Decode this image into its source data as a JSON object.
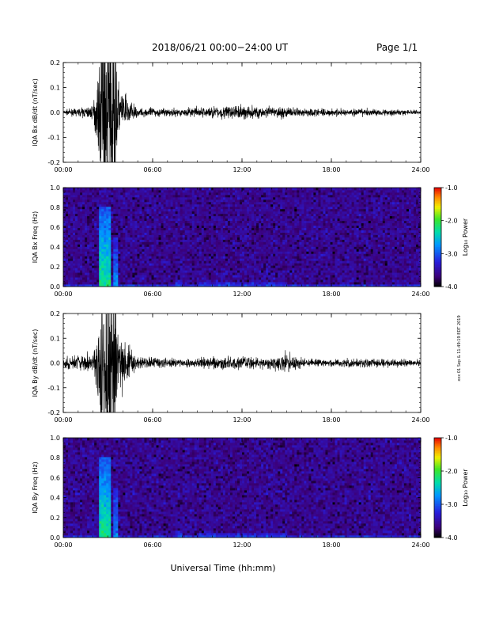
{
  "header": {
    "title": "2018/06/21  00:00−24:00 UT",
    "page": "Page 1/1"
  },
  "side_stamp": "xxx 01 Sep & 11:49:19 EDT 2019",
  "colors": {
    "trace": "#000000",
    "background": "#ffffff"
  },
  "chart_data": [
    {
      "type": "line",
      "ylabel": "IQA Bx dB/dt (nT/sec)",
      "ylim": [
        -0.2,
        0.2
      ],
      "yticks": [
        "-0.2",
        "-0.1",
        "0.0",
        "0.1",
        "0.2"
      ],
      "xlim": [
        0,
        24
      ],
      "xticks": [
        "00:00",
        "06:00",
        "12:00",
        "18:00",
        "24:00"
      ],
      "series": [
        {
          "x": [
            0,
            1,
            2,
            2.5,
            3,
            3.5,
            4,
            5,
            6,
            8,
            10,
            12,
            14,
            15,
            16,
            18,
            20,
            22,
            24
          ],
          "y_amplitude": [
            0.01,
            0.015,
            0.03,
            0.2,
            0.2,
            0.2,
            0.08,
            0.015,
            0.02,
            0.015,
            0.025,
            0.03,
            0.025,
            0.02,
            0.02,
            0.015,
            0.015,
            0.012,
            0.01
          ]
        }
      ]
    },
    {
      "type": "heatmap",
      "ylabel": "IQA Bx Freq (Hz)",
      "ylim": [
        0,
        1.0
      ],
      "yticks": [
        "0.0",
        "0.2",
        "0.4",
        "0.6",
        "0.8",
        "1.0"
      ],
      "xlim": [
        0,
        24
      ],
      "xticks": [
        "00:00",
        "06:00",
        "12:00",
        "18:00",
        "24:00"
      ],
      "colorbar": {
        "label": "Log₁₀ Power",
        "range": [
          -4.0,
          -1.0
        ],
        "ticks": [
          "-1.0",
          "-2.0",
          "-3.0",
          "-4.0"
        ]
      },
      "background_level": -3.6,
      "enhancements": [
        {
          "t_start": 2.4,
          "t_end": 3.2,
          "f_max": 0.8,
          "level": -2.2
        },
        {
          "t_start": 3.4,
          "t_end": 3.6,
          "f_max": 0.5,
          "level": -2.8
        },
        {
          "t_start": 7.5,
          "t_end": 8.0,
          "f_max": 0.07,
          "level": -3.0
        },
        {
          "t_start": 9.0,
          "t_end": 15.0,
          "f_max": 0.05,
          "level": -3.1
        }
      ]
    },
    {
      "type": "line",
      "ylabel": "IQA By dB/dt (nT/sec)",
      "ylim": [
        -0.2,
        0.2
      ],
      "yticks": [
        "-0.2",
        "-0.1",
        "0.0",
        "0.1",
        "0.2"
      ],
      "xlim": [
        0,
        24
      ],
      "xticks": [
        "00:00",
        "06:00",
        "12:00",
        "18:00",
        "24:00"
      ],
      "series": [
        {
          "x": [
            0,
            1,
            2,
            2.5,
            3,
            3.5,
            4,
            5,
            6,
            8,
            10,
            12,
            14,
            15,
            16,
            18,
            20,
            22,
            24
          ],
          "y_amplitude": [
            0.025,
            0.03,
            0.05,
            0.2,
            0.2,
            0.2,
            0.1,
            0.025,
            0.025,
            0.015,
            0.025,
            0.03,
            0.025,
            0.045,
            0.02,
            0.015,
            0.02,
            0.015,
            0.015
          ]
        }
      ]
    },
    {
      "type": "heatmap",
      "ylabel": "IQA By Freq (Hz)",
      "ylim": [
        0,
        1.0
      ],
      "yticks": [
        "0.0",
        "0.2",
        "0.4",
        "0.6",
        "0.8",
        "1.0"
      ],
      "xlim": [
        0,
        24
      ],
      "xticks": [
        "00:00",
        "06:00",
        "12:00",
        "18:00",
        "24:00"
      ],
      "colorbar": {
        "label": "Log₁₀ Power",
        "range": [
          -4.0,
          -1.0
        ],
        "ticks": [
          "-1.0",
          "-2.0",
          "-3.0",
          "-4.0"
        ]
      },
      "background_level": -3.6,
      "enhancements": [
        {
          "t_start": 2.4,
          "t_end": 3.2,
          "f_max": 0.8,
          "level": -2.2
        },
        {
          "t_start": 3.4,
          "t_end": 3.6,
          "f_max": 0.5,
          "level": -2.8
        },
        {
          "t_start": 7.5,
          "t_end": 8.0,
          "f_max": 0.07,
          "level": -3.0
        },
        {
          "t_start": 9.0,
          "t_end": 15.0,
          "f_max": 0.05,
          "level": -3.1
        }
      ]
    }
  ],
  "xlabel": "Universal Time (hh:mm)"
}
